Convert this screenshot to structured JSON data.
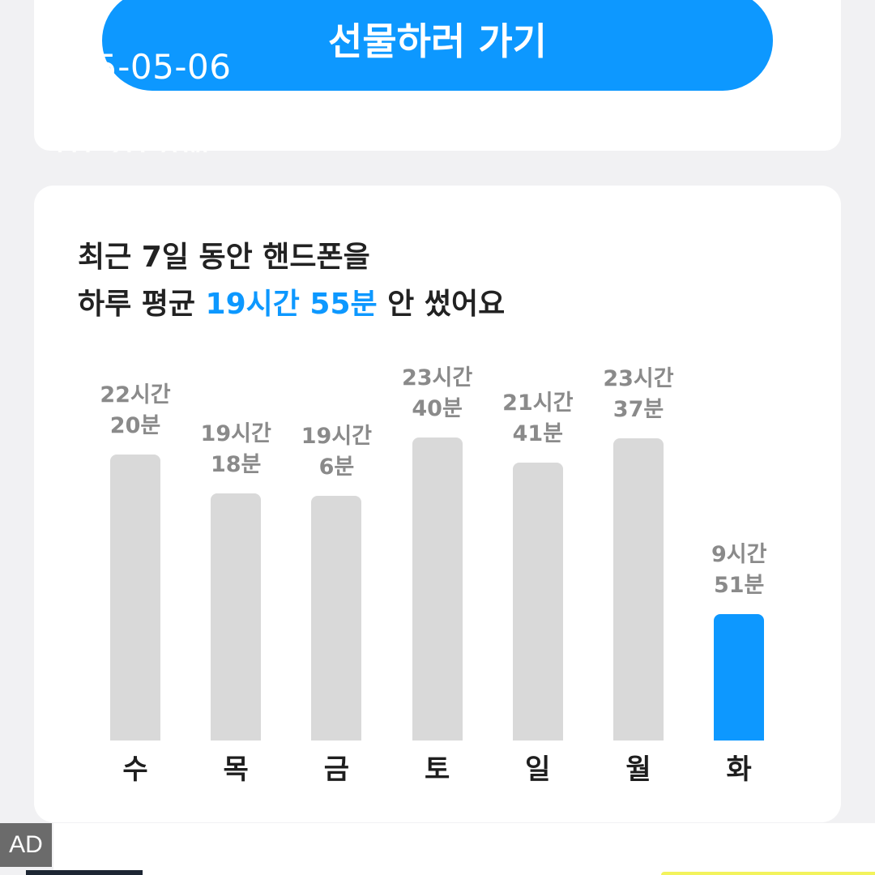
{
  "top_card": {
    "button_label": "선물하러 가기",
    "overlay_date": "5-05-06",
    "overlay_time": "10:20 AM"
  },
  "stats": {
    "headline_line1": "최근 7일 동안 핸드폰을",
    "headline_line2_prefix": "하루 평균 ",
    "headline_line2_highlight": "19시간 55분",
    "headline_line2_suffix": " 안 썼어요"
  },
  "chart_data": {
    "type": "bar",
    "categories": [
      "수",
      "목",
      "금",
      "토",
      "일",
      "월",
      "화"
    ],
    "values": [
      1340,
      1158,
      1146,
      1420,
      1301,
      1417,
      591
    ],
    "unit": "minutes",
    "value_labels": [
      [
        "22시간",
        "20분"
      ],
      [
        "19시간",
        "18분"
      ],
      [
        "19시간",
        "6분"
      ],
      [
        "23시간",
        "40분"
      ],
      [
        "21시간",
        "41분"
      ],
      [
        "23시간",
        "37분"
      ],
      [
        "9시간",
        "51분"
      ]
    ],
    "highlight_index": 6,
    "colors": {
      "bar": "#d9d9d9",
      "highlight": "#0d98ff"
    }
  },
  "ad": {
    "badge": "AD"
  },
  "colors": {
    "accent": "#0d98ff",
    "background": "#f1f1f3",
    "card": "#ffffff"
  }
}
